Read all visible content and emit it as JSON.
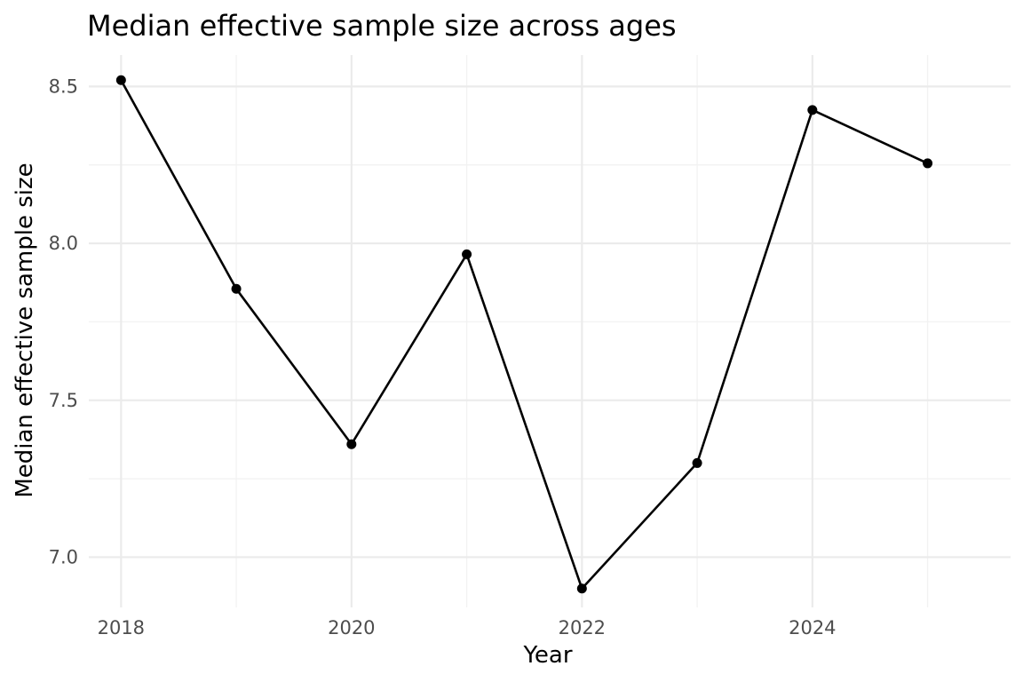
{
  "chart_data": {
    "type": "line",
    "title": "Median effective sample size across ages",
    "xlabel": "Year",
    "ylabel": "Median effective sample size",
    "x": [
      2018,
      2019,
      2020,
      2021,
      2022,
      2023,
      2024,
      2025
    ],
    "series": [
      {
        "values": [
          8.52,
          7.855,
          7.36,
          7.965,
          6.9,
          7.3,
          8.425,
          8.255
        ]
      }
    ],
    "xlim": [
      2017.72,
      2025.72
    ],
    "ylim": [
      6.84,
      8.6
    ],
    "x_major_ticks": [
      2018,
      2020,
      2022,
      2024
    ],
    "x_major_tick_labels": [
      "2018",
      "2020",
      "2022",
      "2024"
    ],
    "x_minor_ticks": [
      2019,
      2021,
      2023,
      2025
    ],
    "y_major_ticks": [
      7.0,
      7.5,
      8.0,
      8.5
    ],
    "y_major_tick_labels": [
      "7.0",
      "7.5",
      "8.0",
      "8.5"
    ],
    "y_minor_ticks": [
      7.25,
      7.75,
      8.25
    ],
    "grid": true,
    "legend": "none",
    "colors": {
      "line": "#000000",
      "point": "#000000",
      "grid_major": "#ebebeb",
      "grid_minor": "#f2f2f2",
      "tick_label": "#4d4d4d",
      "background": "#ffffff"
    }
  }
}
